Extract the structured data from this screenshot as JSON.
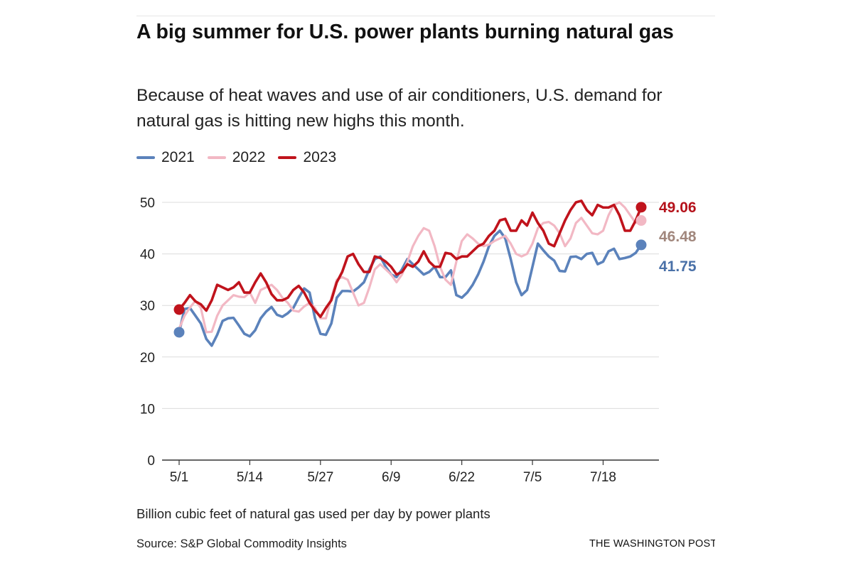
{
  "header": {
    "title": "A big summer for U.S. power plants burning natural gas",
    "subtitle": "Because of heat waves and use of air conditioners, U.S. demand for natural gas is hitting new highs this month."
  },
  "footer": {
    "note": "Billion cubic feet of natural gas used per day by power plants",
    "source": "Source: S&P Global Commodity Insights",
    "credit": "THE WASHINGTON POST"
  },
  "chart_data": {
    "type": "line",
    "title": "A big summer for U.S. power plants burning natural gas",
    "subtitle": "Because of heat waves and use of air conditioners, U.S. demand for natural gas is hitting new highs this month.",
    "xlabel": "",
    "ylabel": "Billion cubic feet of natural gas used per day by power plants",
    "xlim": [
      0,
      88
    ],
    "ylim": [
      0,
      50
    ],
    "x_unit": "days since 5/1",
    "x_ticks": [
      {
        "x": 0,
        "label": "5/1"
      },
      {
        "x": 13,
        "label": "5/14"
      },
      {
        "x": 26,
        "label": "5/27"
      },
      {
        "x": 39,
        "label": "6/9"
      },
      {
        "x": 52,
        "label": "6/22"
      },
      {
        "x": 65,
        "label": "7/5"
      },
      {
        "x": 78,
        "label": "7/18"
      }
    ],
    "y_ticks": [
      0,
      10,
      20,
      30,
      40,
      50
    ],
    "grid": true,
    "legend": "top-left",
    "series": [
      {
        "name": "2021",
        "color": "#5b82bb",
        "end_label": "41.75",
        "values": [
          24.8,
          29.3,
          29.5,
          28.0,
          26.5,
          23.5,
          22.2,
          24.3,
          27.0,
          27.5,
          27.6,
          26.1,
          24.5,
          24.0,
          25.2,
          27.5,
          28.8,
          29.7,
          28.2,
          27.8,
          28.5,
          29.5,
          31.5,
          33.3,
          32.5,
          27.5,
          24.5,
          24.3,
          26.5,
          31.5,
          32.8,
          32.8,
          32.7,
          33.5,
          34.5,
          37.0,
          39.0,
          39.5,
          37.5,
          36.0,
          35.5,
          37.0,
          39.0,
          38.0,
          37.0,
          36.0,
          36.5,
          37.5,
          35.5,
          35.5,
          36.8,
          32.0,
          31.5,
          32.5,
          34.0,
          36.0,
          38.5,
          41.5,
          43.5,
          44.5,
          43.0,
          39.0,
          34.5,
          32.0,
          33.0,
          37.5,
          42.0,
          40.7,
          39.5,
          38.7,
          36.7,
          36.6,
          39.4,
          39.5,
          39.0,
          40.0,
          40.2,
          38.0,
          38.5,
          40.5,
          41.0,
          39.0,
          39.2,
          39.5,
          40.2,
          41.75
        ]
      },
      {
        "name": "2022",
        "color": "#f2b8c4",
        "end_label": "46.48",
        "values": [
          25.5,
          28.0,
          29.6,
          30.9,
          29.5,
          24.8,
          24.9,
          28.0,
          30.0,
          31.0,
          32.0,
          31.7,
          31.6,
          32.5,
          30.5,
          33.0,
          33.5,
          34.0,
          33.0,
          31.5,
          30.5,
          29.0,
          28.8,
          29.8,
          30.5,
          29.5,
          27.5,
          27.5,
          31.5,
          35.0,
          35.5,
          35.0,
          32.5,
          30.0,
          30.5,
          33.5,
          37.0,
          38.0,
          37.0,
          36.0,
          34.5,
          36.0,
          38.5,
          41.5,
          43.5,
          45.0,
          44.5,
          41.5,
          37.5,
          35.0,
          34.0,
          38.5,
          42.5,
          43.8,
          43.0,
          42.0,
          41.5,
          41.8,
          42.5,
          43.0,
          43.5,
          42.0,
          40.0,
          39.5,
          40.0,
          42.0,
          45.0,
          46.0,
          46.2,
          45.5,
          44.0,
          41.5,
          43.0,
          46.0,
          47.0,
          45.5,
          44.0,
          43.8,
          44.5,
          47.5,
          49.5,
          50.0,
          49.0,
          47.5,
          46.0,
          46.48
        ]
      },
      {
        "name": "2023",
        "color": "#c0131c",
        "end_label": "49.06",
        "values": [
          29.2,
          30.5,
          32.0,
          30.8,
          30.2,
          29.0,
          31.0,
          34.0,
          33.5,
          33.0,
          33.5,
          34.5,
          32.5,
          32.5,
          34.5,
          36.2,
          34.5,
          32.2,
          31.0,
          31.0,
          31.5,
          33.0,
          33.8,
          32.5,
          30.5,
          29.0,
          27.8,
          29.5,
          31.0,
          34.5,
          36.5,
          39.5,
          40.0,
          38.0,
          36.5,
          36.5,
          39.5,
          39.2,
          38.5,
          37.5,
          36.0,
          36.5,
          38.0,
          37.5,
          38.5,
          40.5,
          38.5,
          37.5,
          37.5,
          40.2,
          40.0,
          39.0,
          39.5,
          39.5,
          40.5,
          41.5,
          42.0,
          43.5,
          44.5,
          46.5,
          46.8,
          44.5,
          44.5,
          46.5,
          45.5,
          48.0,
          46.0,
          44.5,
          42.0,
          41.5,
          44.0,
          46.5,
          48.5,
          50.0,
          50.3,
          48.5,
          47.5,
          49.5,
          49.0,
          49.0,
          49.5,
          47.5,
          44.5,
          44.5,
          46.5,
          49.06
        ]
      }
    ]
  }
}
